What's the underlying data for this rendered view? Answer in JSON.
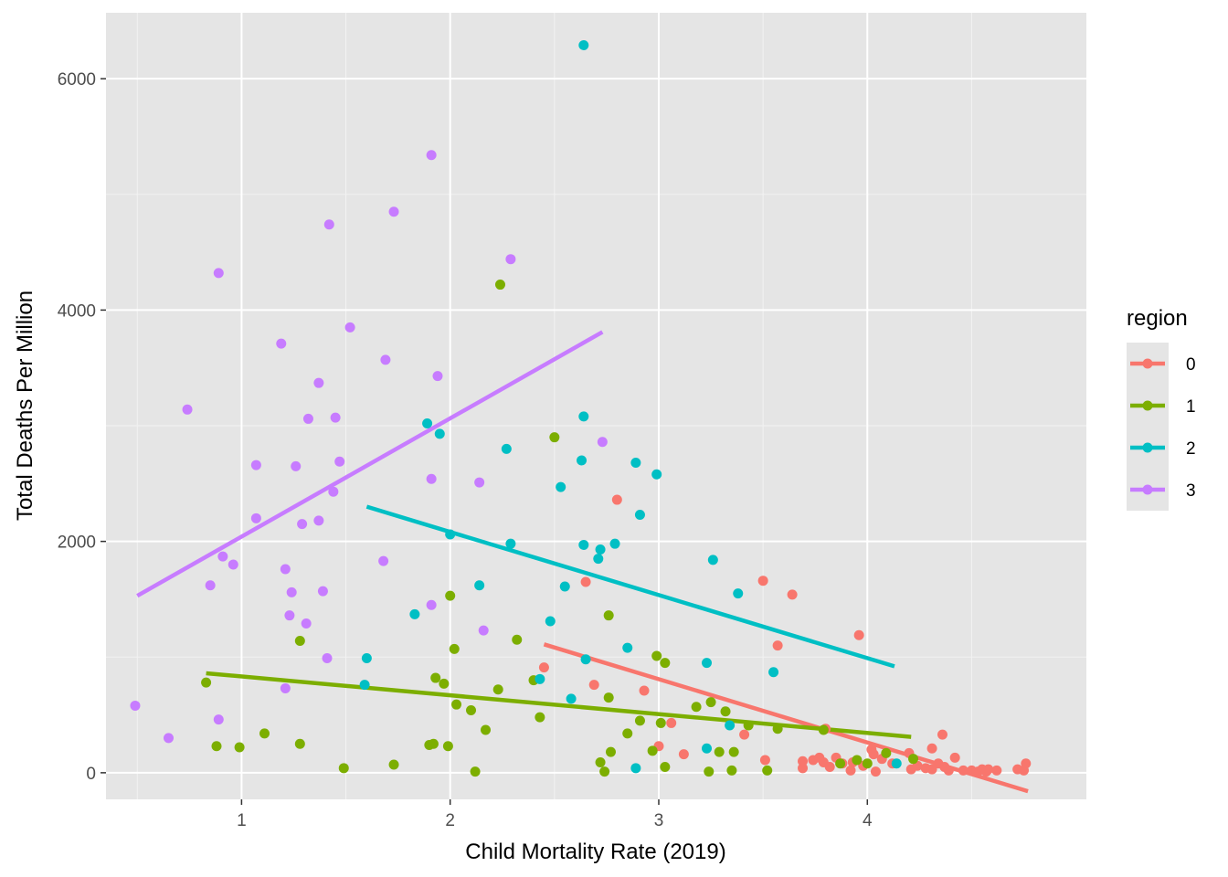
{
  "chart_data": {
    "type": "scatter",
    "title": "",
    "xlabel": "Child Mortality Rate (2019)",
    "ylabel": "Total Deaths Per Million",
    "xlim": [
      0.35,
      5.05
    ],
    "ylim": [
      -230,
      6570
    ],
    "x_ticks": [
      1,
      2,
      3,
      4
    ],
    "x_tick_labels": [
      "1",
      "2",
      "3",
      "4"
    ],
    "y_ticks": [
      0,
      2000,
      4000,
      6000
    ],
    "y_tick_labels": [
      "0",
      "2000",
      "4000",
      "6000"
    ],
    "grid": true,
    "background": "#e5e5e5",
    "legend": {
      "title": "region",
      "placement": "right"
    },
    "series": [
      {
        "name": "0",
        "color": "#f8766d",
        "trend": {
          "x": [
            2.45,
            4.77
          ],
          "y": [
            1110,
            -160
          ]
        },
        "points": [
          [
            2.45,
            910
          ],
          [
            2.65,
            1650
          ],
          [
            2.69,
            760
          ],
          [
            2.8,
            2360
          ],
          [
            2.93,
            710
          ],
          [
            3.0,
            230
          ],
          [
            3.06,
            430
          ],
          [
            3.12,
            160
          ],
          [
            3.41,
            330
          ],
          [
            3.5,
            1660
          ],
          [
            3.51,
            110
          ],
          [
            3.57,
            1100
          ],
          [
            3.64,
            1540
          ],
          [
            3.69,
            40
          ],
          [
            3.69,
            100
          ],
          [
            3.74,
            110
          ],
          [
            3.77,
            130
          ],
          [
            3.79,
            90
          ],
          [
            3.8,
            380
          ],
          [
            3.82,
            50
          ],
          [
            3.85,
            130
          ],
          [
            3.88,
            80
          ],
          [
            3.92,
            20
          ],
          [
            3.93,
            90
          ],
          [
            3.96,
            1190
          ],
          [
            3.98,
            60
          ],
          [
            4.02,
            200
          ],
          [
            4.03,
            160
          ],
          [
            4.04,
            10
          ],
          [
            4.07,
            120
          ],
          [
            4.12,
            80
          ],
          [
            4.2,
            170
          ],
          [
            4.21,
            30
          ],
          [
            4.24,
            60
          ],
          [
            4.28,
            40
          ],
          [
            4.31,
            210
          ],
          [
            4.31,
            30
          ],
          [
            4.34,
            80
          ],
          [
            4.36,
            330
          ],
          [
            4.37,
            50
          ],
          [
            4.39,
            20
          ],
          [
            4.42,
            130
          ],
          [
            4.46,
            20
          ],
          [
            4.5,
            20
          ],
          [
            4.53,
            10
          ],
          [
            4.55,
            30
          ],
          [
            4.57,
            10
          ],
          [
            4.58,
            30
          ],
          [
            4.62,
            20
          ],
          [
            4.72,
            30
          ],
          [
            4.75,
            20
          ],
          [
            4.76,
            80
          ]
        ]
      },
      {
        "name": "1",
        "color": "#7cae00",
        "trend": {
          "x": [
            0.83,
            4.21
          ],
          "y": [
            860,
            310
          ]
        },
        "points": [
          [
            0.83,
            780
          ],
          [
            0.88,
            230
          ],
          [
            0.99,
            220
          ],
          [
            1.11,
            340
          ],
          [
            1.28,
            1140
          ],
          [
            1.28,
            250
          ],
          [
            1.49,
            40
          ],
          [
            1.73,
            70
          ],
          [
            1.9,
            240
          ],
          [
            1.92,
            250
          ],
          [
            1.93,
            820
          ],
          [
            1.97,
            770
          ],
          [
            1.99,
            230
          ],
          [
            2.0,
            1530
          ],
          [
            2.02,
            1070
          ],
          [
            2.03,
            590
          ],
          [
            2.1,
            540
          ],
          [
            2.12,
            10
          ],
          [
            2.17,
            370
          ],
          [
            2.23,
            720
          ],
          [
            2.24,
            4220
          ],
          [
            2.32,
            1150
          ],
          [
            2.4,
            800
          ],
          [
            2.43,
            480
          ],
          [
            2.5,
            2900
          ],
          [
            2.72,
            90
          ],
          [
            2.74,
            10
          ],
          [
            2.76,
            1360
          ],
          [
            2.76,
            650
          ],
          [
            2.77,
            180
          ],
          [
            2.85,
            340
          ],
          [
            2.91,
            450
          ],
          [
            2.97,
            190
          ],
          [
            2.99,
            1010
          ],
          [
            3.01,
            430
          ],
          [
            3.03,
            950
          ],
          [
            3.03,
            50
          ],
          [
            3.18,
            570
          ],
          [
            3.24,
            10
          ],
          [
            3.25,
            610
          ],
          [
            3.29,
            180
          ],
          [
            3.32,
            530
          ],
          [
            3.35,
            20
          ],
          [
            3.36,
            180
          ],
          [
            3.43,
            410
          ],
          [
            3.52,
            20
          ],
          [
            3.57,
            380
          ],
          [
            3.79,
            370
          ],
          [
            3.87,
            80
          ],
          [
            3.95,
            110
          ],
          [
            4.0,
            80
          ],
          [
            4.09,
            170
          ],
          [
            4.22,
            120
          ]
        ]
      },
      {
        "name": "2",
        "color": "#00bfc4",
        "trend": {
          "x": [
            1.6,
            4.13
          ],
          "y": [
            2300,
            920
          ]
        },
        "points": [
          [
            1.6,
            990
          ],
          [
            1.59,
            760
          ],
          [
            1.83,
            1370
          ],
          [
            1.89,
            3020
          ],
          [
            1.95,
            2930
          ],
          [
            2.0,
            2060
          ],
          [
            2.14,
            1620
          ],
          [
            2.27,
            2800
          ],
          [
            2.29,
            1980
          ],
          [
            2.43,
            810
          ],
          [
            2.48,
            1310
          ],
          [
            2.53,
            2470
          ],
          [
            2.55,
            1610
          ],
          [
            2.58,
            640
          ],
          [
            2.63,
            2700
          ],
          [
            2.64,
            3080
          ],
          [
            2.64,
            1970
          ],
          [
            2.65,
            980
          ],
          [
            2.64,
            6290
          ],
          [
            2.71,
            1850
          ],
          [
            2.72,
            1930
          ],
          [
            2.79,
            1980
          ],
          [
            2.85,
            1080
          ],
          [
            2.89,
            2680
          ],
          [
            2.89,
            40
          ],
          [
            2.91,
            2230
          ],
          [
            2.99,
            2580
          ],
          [
            3.23,
            950
          ],
          [
            3.23,
            210
          ],
          [
            3.26,
            1840
          ],
          [
            3.34,
            410
          ],
          [
            3.38,
            1550
          ],
          [
            3.55,
            870
          ],
          [
            4.14,
            80
          ]
        ]
      },
      {
        "name": "3",
        "color": "#c77cff",
        "trend": {
          "x": [
            0.5,
            2.73
          ],
          "y": [
            1530,
            3810
          ]
        },
        "points": [
          [
            0.49,
            580
          ],
          [
            0.65,
            300
          ],
          [
            0.74,
            3140
          ],
          [
            0.85,
            1620
          ],
          [
            0.89,
            4320
          ],
          [
            0.89,
            460
          ],
          [
            0.91,
            1870
          ],
          [
            0.96,
            1800
          ],
          [
            1.07,
            2660
          ],
          [
            1.07,
            2200
          ],
          [
            1.19,
            3710
          ],
          [
            1.21,
            1760
          ],
          [
            1.21,
            730
          ],
          [
            1.23,
            1360
          ],
          [
            1.24,
            1560
          ],
          [
            1.26,
            2650
          ],
          [
            1.29,
            2150
          ],
          [
            1.31,
            1290
          ],
          [
            1.32,
            3060
          ],
          [
            1.37,
            3370
          ],
          [
            1.37,
            2180
          ],
          [
            1.39,
            1570
          ],
          [
            1.41,
            990
          ],
          [
            1.42,
            4740
          ],
          [
            1.44,
            2430
          ],
          [
            1.45,
            3070
          ],
          [
            1.47,
            2690
          ],
          [
            1.52,
            3850
          ],
          [
            1.68,
            1830
          ],
          [
            1.69,
            3570
          ],
          [
            1.73,
            4850
          ],
          [
            1.91,
            5340
          ],
          [
            1.91,
            1450
          ],
          [
            1.91,
            2540
          ],
          [
            1.94,
            3430
          ],
          [
            2.14,
            2510
          ],
          [
            2.16,
            1230
          ],
          [
            2.29,
            4440
          ],
          [
            2.73,
            2860
          ]
        ]
      }
    ]
  }
}
